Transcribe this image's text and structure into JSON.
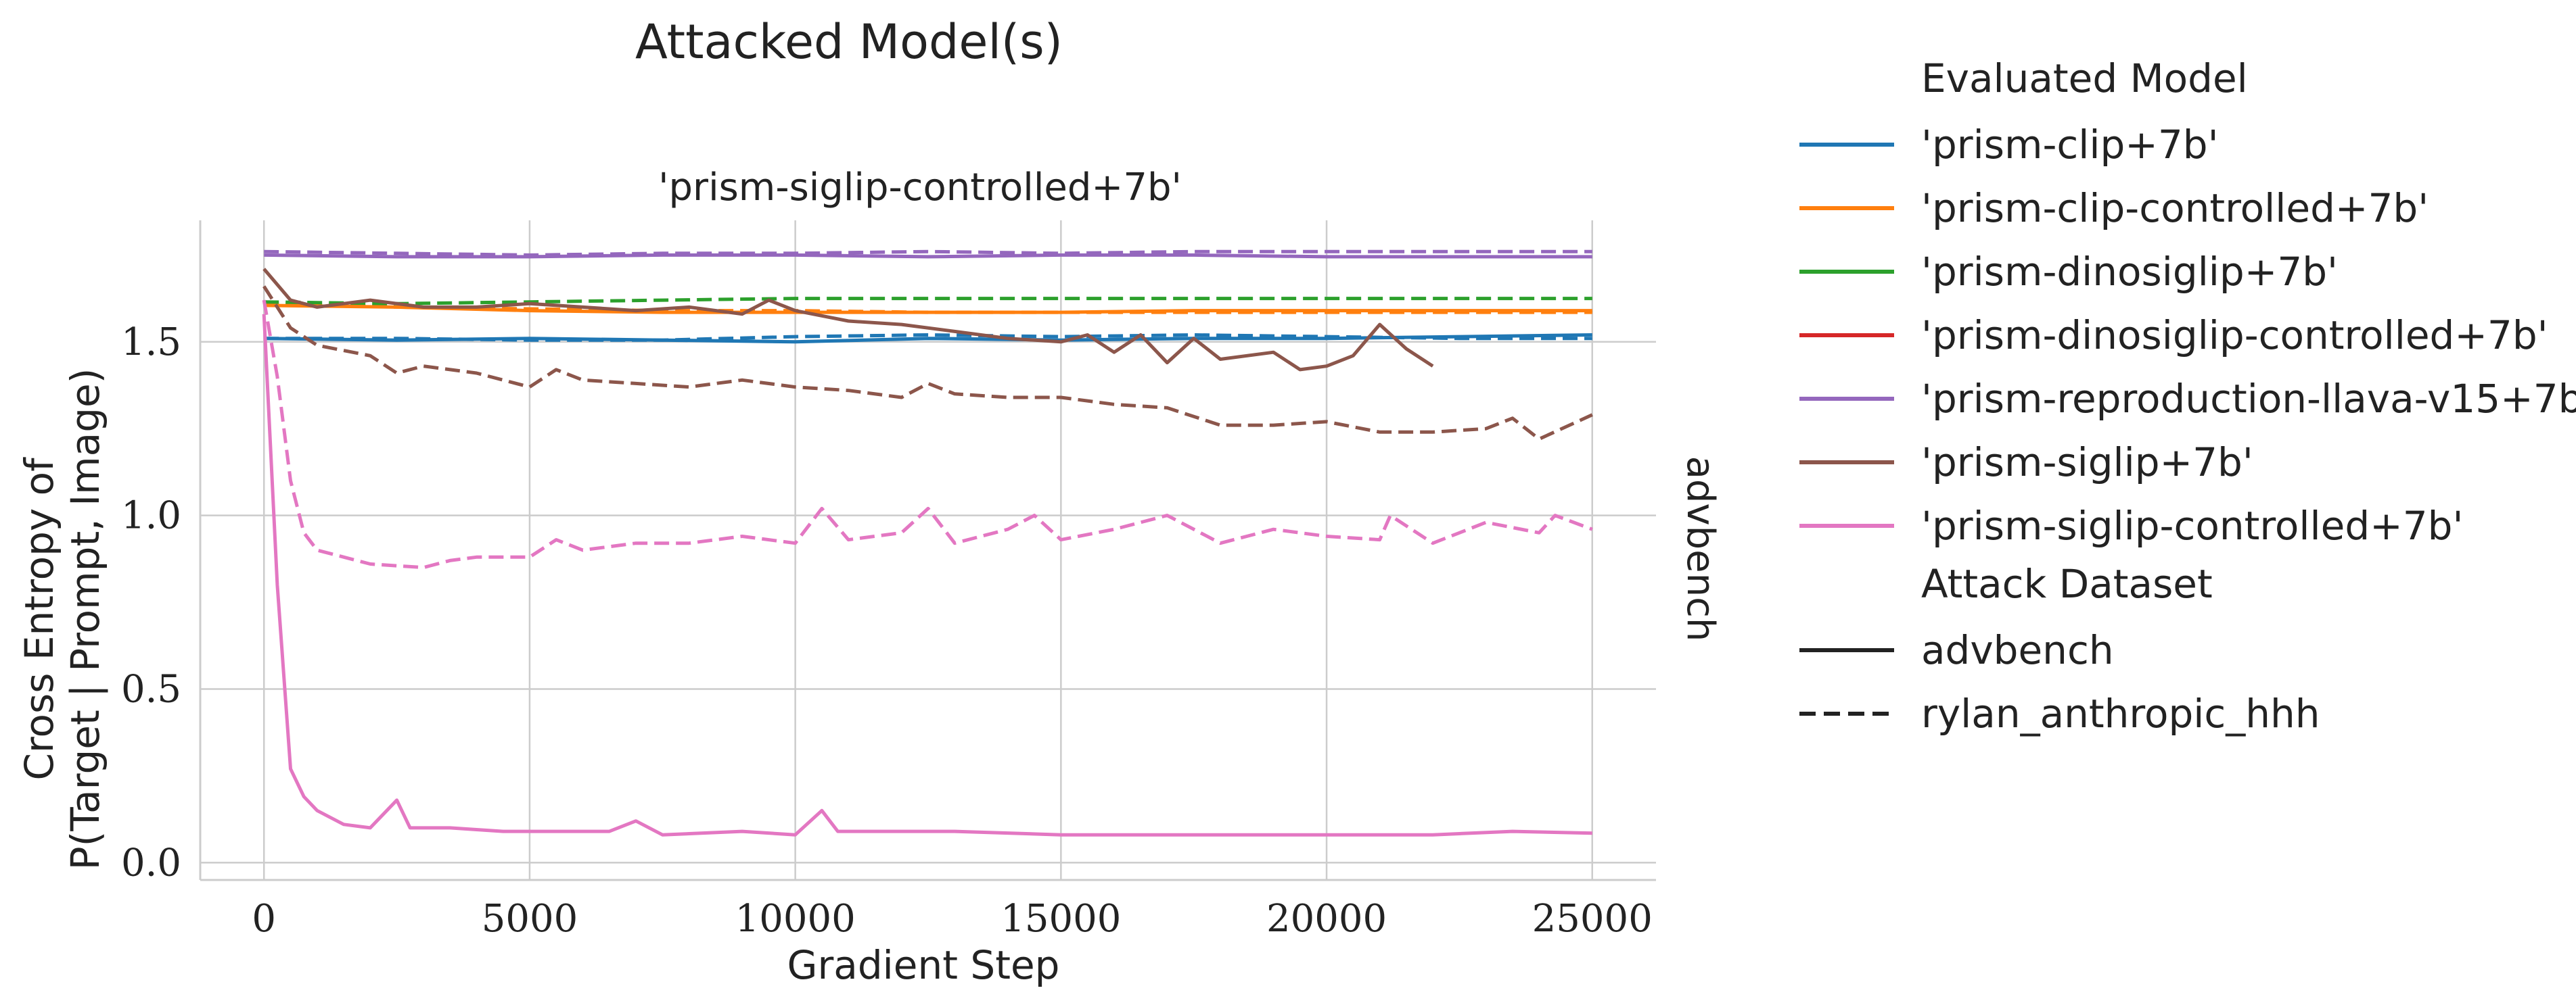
{
  "figure": {
    "suptitle": "Attacked Model(s)",
    "facet_title": "'prism-siglip-controlled+7b'",
    "row_label": "advbench"
  },
  "legend": {
    "model_title": "Evaluated Model",
    "dataset_title": "Attack Dataset",
    "models": [
      {
        "name": "'prism-clip+7b'",
        "color": "#1f77b4"
      },
      {
        "name": "'prism-clip-controlled+7b'",
        "color": "#ff7f0e"
      },
      {
        "name": "'prism-dinosiglip+7b'",
        "color": "#2ca02c"
      },
      {
        "name": "'prism-dinosiglip-controlled+7b'",
        "color": "#d62728"
      },
      {
        "name": "'prism-reproduction-llava-v15+7b'",
        "color": "#9467bd"
      },
      {
        "name": "'prism-siglip+7b'",
        "color": "#8c564b"
      },
      {
        "name": "'prism-siglip-controlled+7b'",
        "color": "#e377c2"
      }
    ],
    "datasets": [
      {
        "name": "advbench",
        "dash": "solid"
      },
      {
        "name": "rylan_anthropic_hhh",
        "dash": "dashed"
      }
    ]
  },
  "chart_data": {
    "type": "line",
    "xlabel": "Gradient Step",
    "ylabel_line1": "Cross Entropy of",
    "ylabel_line2": "P(Target | Prompt, Image)",
    "xlim": [
      -1200,
      26200
    ],
    "ylim": [
      -0.05,
      1.85
    ],
    "xticks": [
      0,
      5000,
      10000,
      15000,
      20000,
      25000
    ],
    "xtick_labels": [
      "0",
      "5000",
      "10000",
      "15000",
      "20000",
      "25000"
    ],
    "yticks": [
      0.0,
      0.5,
      1.0,
      1.5
    ],
    "ytick_labels": [
      "0.0",
      "0.5",
      "1.0",
      "1.5"
    ],
    "grid": true,
    "series": [
      {
        "model": "'prism-clip+7b'",
        "dataset": "advbench",
        "color": "#1f77b4",
        "dash": "solid",
        "points": [
          [
            0,
            1.51
          ],
          [
            2500,
            1.505
          ],
          [
            5000,
            1.51
          ],
          [
            7500,
            1.505
          ],
          [
            10000,
            1.5
          ],
          [
            12500,
            1.51
          ],
          [
            15000,
            1.505
          ],
          [
            17500,
            1.51
          ],
          [
            20000,
            1.51
          ],
          [
            22500,
            1.515
          ],
          [
            25000,
            1.52
          ]
        ]
      },
      {
        "model": "'prism-clip+7b'",
        "dataset": "rylan_anthropic_hhh",
        "color": "#1f77b4",
        "dash": "dashed",
        "points": [
          [
            0,
            1.51
          ],
          [
            2500,
            1.51
          ],
          [
            5000,
            1.505
          ],
          [
            7500,
            1.505
          ],
          [
            10000,
            1.515
          ],
          [
            12500,
            1.52
          ],
          [
            15000,
            1.515
          ],
          [
            17500,
            1.52
          ],
          [
            20000,
            1.515
          ],
          [
            22500,
            1.51
          ],
          [
            25000,
            1.51
          ]
        ]
      },
      {
        "model": "'prism-clip-controlled+7b'",
        "dataset": "advbench",
        "color": "#ff7f0e",
        "dash": "solid",
        "points": [
          [
            0,
            1.605
          ],
          [
            2500,
            1.6
          ],
          [
            5000,
            1.59
          ],
          [
            7500,
            1.585
          ],
          [
            10000,
            1.585
          ],
          [
            12500,
            1.585
          ],
          [
            15000,
            1.585
          ],
          [
            17500,
            1.59
          ],
          [
            20000,
            1.59
          ],
          [
            22500,
            1.59
          ],
          [
            25000,
            1.59
          ]
        ]
      },
      {
        "model": "'prism-clip-controlled+7b'",
        "dataset": "rylan_anthropic_hhh",
        "color": "#ff7f0e",
        "dash": "dashed",
        "points": [
          [
            0,
            1.61
          ],
          [
            2500,
            1.6
          ],
          [
            5000,
            1.595
          ],
          [
            7500,
            1.59
          ],
          [
            10000,
            1.59
          ],
          [
            12500,
            1.585
          ],
          [
            15000,
            1.585
          ],
          [
            17500,
            1.585
          ],
          [
            20000,
            1.585
          ],
          [
            22500,
            1.585
          ],
          [
            25000,
            1.585
          ]
        ]
      },
      {
        "model": "'prism-dinosiglip+7b'",
        "dataset": "rylan_anthropic_hhh",
        "color": "#2ca02c",
        "dash": "dashed",
        "points": [
          [
            0,
            1.615
          ],
          [
            2500,
            1.61
          ],
          [
            5000,
            1.615
          ],
          [
            7500,
            1.62
          ],
          [
            10000,
            1.625
          ],
          [
            12500,
            1.625
          ],
          [
            15000,
            1.625
          ],
          [
            17500,
            1.625
          ],
          [
            20000,
            1.625
          ],
          [
            22500,
            1.625
          ],
          [
            25000,
            1.625
          ]
        ]
      },
      {
        "model": "'prism-reproduction-llava-v15+7b'",
        "dataset": "advbench",
        "color": "#9467bd",
        "dash": "solid",
        "points": [
          [
            0,
            1.75
          ],
          [
            2500,
            1.745
          ],
          [
            5000,
            1.745
          ],
          [
            7500,
            1.75
          ],
          [
            10000,
            1.75
          ],
          [
            12500,
            1.745
          ],
          [
            15000,
            1.75
          ],
          [
            17500,
            1.75
          ],
          [
            20000,
            1.745
          ],
          [
            22500,
            1.745
          ],
          [
            25000,
            1.745
          ]
        ]
      },
      {
        "model": "'prism-reproduction-llava-v15+7b'",
        "dataset": "rylan_anthropic_hhh",
        "color": "#9467bd",
        "dash": "dashed",
        "points": [
          [
            0,
            1.76
          ],
          [
            2500,
            1.755
          ],
          [
            5000,
            1.75
          ],
          [
            7500,
            1.755
          ],
          [
            10000,
            1.755
          ],
          [
            12500,
            1.76
          ],
          [
            15000,
            1.755
          ],
          [
            17500,
            1.76
          ],
          [
            20000,
            1.76
          ],
          [
            22500,
            1.76
          ],
          [
            25000,
            1.76
          ]
        ]
      },
      {
        "model": "'prism-siglip+7b'",
        "dataset": "advbench",
        "color": "#8c564b",
        "dash": "solid",
        "points": [
          [
            0,
            1.71
          ],
          [
            500,
            1.62
          ],
          [
            1000,
            1.6
          ],
          [
            2000,
            1.62
          ],
          [
            3000,
            1.6
          ],
          [
            4000,
            1.6
          ],
          [
            5000,
            1.61
          ],
          [
            6000,
            1.6
          ],
          [
            7000,
            1.59
          ],
          [
            8000,
            1.6
          ],
          [
            9000,
            1.58
          ],
          [
            9500,
            1.62
          ],
          [
            10000,
            1.59
          ],
          [
            11000,
            1.56
          ],
          [
            12000,
            1.55
          ],
          [
            13000,
            1.53
          ],
          [
            14000,
            1.51
          ],
          [
            15000,
            1.5
          ],
          [
            15500,
            1.52
          ],
          [
            16000,
            1.47
          ],
          [
            16500,
            1.52
          ],
          [
            17000,
            1.44
          ],
          [
            17500,
            1.51
          ],
          [
            18000,
            1.45
          ],
          [
            19000,
            1.47
          ],
          [
            19500,
            1.42
          ],
          [
            20000,
            1.43
          ],
          [
            20500,
            1.46
          ],
          [
            21000,
            1.55
          ],
          [
            21500,
            1.48
          ],
          [
            22000,
            1.43
          ]
        ]
      },
      {
        "model": "'prism-siglip+7b'",
        "dataset": "rylan_anthropic_hhh",
        "color": "#8c564b",
        "dash": "dashed",
        "points": [
          [
            0,
            1.66
          ],
          [
            500,
            1.54
          ],
          [
            1000,
            1.49
          ],
          [
            2000,
            1.46
          ],
          [
            2500,
            1.41
          ],
          [
            3000,
            1.43
          ],
          [
            4000,
            1.41
          ],
          [
            5000,
            1.37
          ],
          [
            5500,
            1.42
          ],
          [
            6000,
            1.39
          ],
          [
            7000,
            1.38
          ],
          [
            8000,
            1.37
          ],
          [
            9000,
            1.39
          ],
          [
            10000,
            1.37
          ],
          [
            11000,
            1.36
          ],
          [
            12000,
            1.34
          ],
          [
            12500,
            1.38
          ],
          [
            13000,
            1.35
          ],
          [
            14000,
            1.34
          ],
          [
            15000,
            1.34
          ],
          [
            16000,
            1.32
          ],
          [
            17000,
            1.31
          ],
          [
            18000,
            1.26
          ],
          [
            19000,
            1.26
          ],
          [
            20000,
            1.27
          ],
          [
            21000,
            1.24
          ],
          [
            22000,
            1.24
          ],
          [
            23000,
            1.25
          ],
          [
            23500,
            1.28
          ],
          [
            24000,
            1.22
          ],
          [
            25000,
            1.29
          ]
        ]
      },
      {
        "model": "'prism-siglip-controlled+7b'",
        "dataset": "advbench",
        "color": "#e377c2",
        "dash": "solid",
        "points": [
          [
            0,
            1.58
          ],
          [
            250,
            0.8
          ],
          [
            500,
            0.27
          ],
          [
            750,
            0.19
          ],
          [
            1000,
            0.15
          ],
          [
            1500,
            0.11
          ],
          [
            2000,
            0.1
          ],
          [
            2500,
            0.18
          ],
          [
            2750,
            0.1
          ],
          [
            3500,
            0.1
          ],
          [
            4500,
            0.09
          ],
          [
            5500,
            0.09
          ],
          [
            6500,
            0.09
          ],
          [
            7000,
            0.12
          ],
          [
            7500,
            0.08
          ],
          [
            9000,
            0.09
          ],
          [
            10000,
            0.08
          ],
          [
            10500,
            0.15
          ],
          [
            10800,
            0.09
          ],
          [
            12000,
            0.09
          ],
          [
            13000,
            0.09
          ],
          [
            15000,
            0.08
          ],
          [
            17000,
            0.08
          ],
          [
            20000,
            0.08
          ],
          [
            22000,
            0.08
          ],
          [
            23500,
            0.09
          ],
          [
            25000,
            0.085
          ]
        ]
      },
      {
        "model": "'prism-siglip-controlled+7b'",
        "dataset": "rylan_anthropic_hhh",
        "color": "#e377c2",
        "dash": "dashed",
        "points": [
          [
            0,
            1.62
          ],
          [
            250,
            1.4
          ],
          [
            500,
            1.1
          ],
          [
            750,
            0.95
          ],
          [
            1000,
            0.9
          ],
          [
            2000,
            0.86
          ],
          [
            3000,
            0.85
          ],
          [
            3500,
            0.87
          ],
          [
            4000,
            0.88
          ],
          [
            5000,
            0.88
          ],
          [
            5500,
            0.93
          ],
          [
            6000,
            0.9
          ],
          [
            7000,
            0.92
          ],
          [
            8000,
            0.92
          ],
          [
            9000,
            0.94
          ],
          [
            10000,
            0.92
          ],
          [
            10500,
            1.02
          ],
          [
            11000,
            0.93
          ],
          [
            12000,
            0.95
          ],
          [
            12500,
            1.02
          ],
          [
            13000,
            0.92
          ],
          [
            14000,
            0.96
          ],
          [
            14500,
            1.0
          ],
          [
            15000,
            0.93
          ],
          [
            16000,
            0.96
          ],
          [
            17000,
            1.0
          ],
          [
            18000,
            0.92
          ],
          [
            19000,
            0.96
          ],
          [
            20000,
            0.94
          ],
          [
            21000,
            0.93
          ],
          [
            21200,
            1.0
          ],
          [
            22000,
            0.92
          ],
          [
            23000,
            0.98
          ],
          [
            24000,
            0.95
          ],
          [
            24300,
            1.0
          ],
          [
            25000,
            0.96
          ]
        ]
      }
    ]
  }
}
